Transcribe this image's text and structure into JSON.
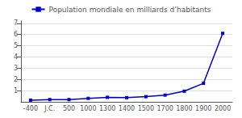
{
  "chart_data": {
    "type": "line",
    "categories": [
      "-400",
      "J.C.",
      "500",
      "1000",
      "1300",
      "1400",
      "1500",
      "1700",
      "1800",
      "1900",
      "2000"
    ],
    "series": [
      {
        "name": "Population mondiale en milliards d’habitants",
        "color": "#0000cc",
        "marker": "square",
        "values": [
          0.15,
          0.2,
          0.2,
          0.31,
          0.4,
          0.37,
          0.46,
          0.6,
          0.95,
          1.65,
          6.1
        ]
      }
    ],
    "ylim": [
      0,
      7.2
    ],
    "yticks": [
      1,
      2,
      3,
      4,
      5,
      6,
      7
    ],
    "grid": true,
    "legend": "top"
  }
}
